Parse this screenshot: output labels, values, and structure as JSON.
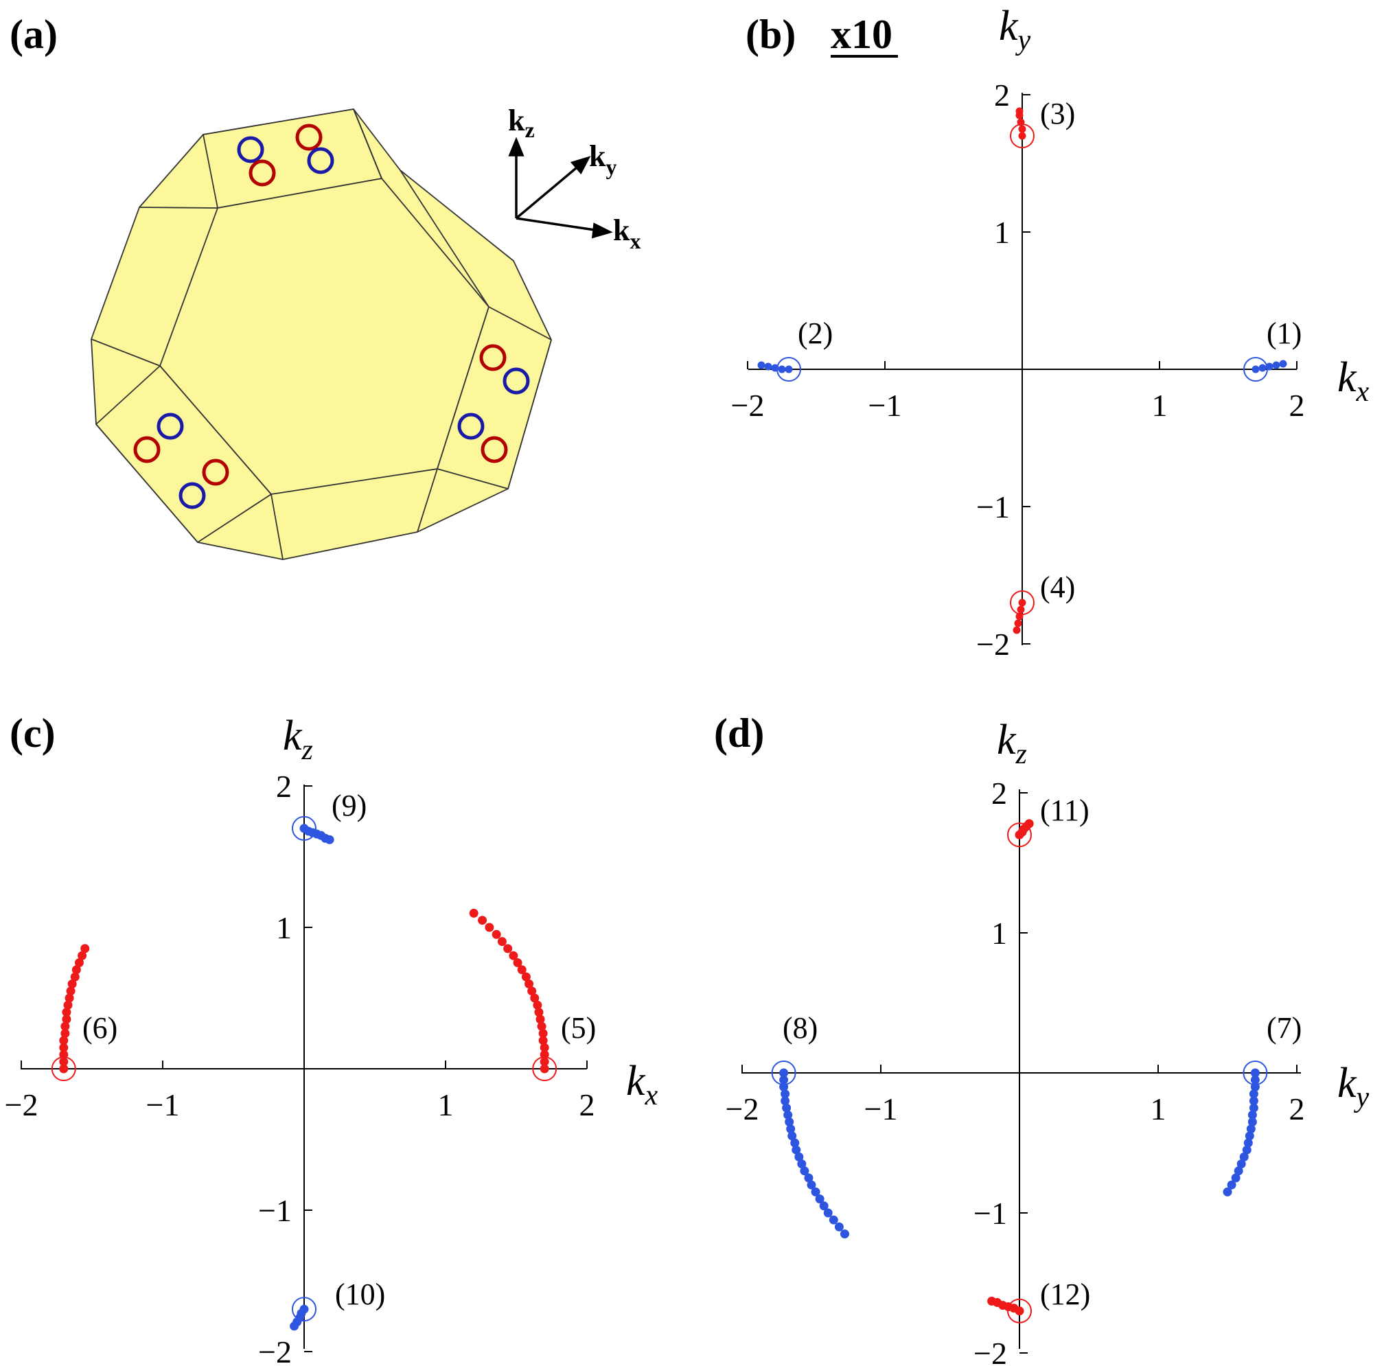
{
  "panel_a": {
    "label": "(a)",
    "axis_labels": {
      "kz": {
        "base": "k",
        "sub": "z"
      },
      "ky": {
        "base": "k",
        "sub": "y"
      },
      "kx": {
        "base": "k",
        "sub": "x"
      }
    },
    "colors": {
      "face": "#fbf79a",
      "edge": "#333333",
      "red": "#b30000",
      "blue": "#1a1aa8"
    }
  },
  "chart_data": [
    {
      "type": "scatter",
      "panel": "(b)",
      "scale_note": "x10",
      "xlabel": {
        "base": "k",
        "sub": "x"
      },
      "ylabel": {
        "base": "k",
        "sub": "y"
      },
      "xlim": [
        -2,
        2
      ],
      "ylim": [
        -2,
        2
      ],
      "xticks": [
        "−2",
        "−1",
        "1",
        "2"
      ],
      "yticks": [
        "2",
        "1",
        "−1",
        "−2"
      ],
      "series": [
        {
          "color": "#2e55e0",
          "points": [
            [
              1.7,
              0.0
            ],
            [
              1.75,
              0.01
            ],
            [
              1.8,
              0.02
            ],
            [
              1.85,
              0.03
            ],
            [
              1.9,
              0.04
            ]
          ]
        },
        {
          "color": "#2e55e0",
          "points": [
            [
              -1.7,
              0.0
            ],
            [
              -1.75,
              0.0
            ],
            [
              -1.8,
              0.01
            ],
            [
              -1.85,
              0.02
            ],
            [
              -1.9,
              0.03
            ]
          ]
        },
        {
          "color": "#ee1a1a",
          "points": [
            [
              0.0,
              1.7
            ],
            [
              0.0,
              1.75
            ],
            [
              -0.01,
              1.8
            ],
            [
              -0.02,
              1.85
            ],
            [
              -0.02,
              1.88
            ]
          ]
        },
        {
          "color": "#ee1a1a",
          "points": [
            [
              0.0,
              -1.7
            ],
            [
              -0.01,
              -1.75
            ],
            [
              -0.02,
              -1.8
            ],
            [
              -0.03,
              -1.85
            ],
            [
              -0.04,
              -1.9
            ]
          ]
        }
      ],
      "weyl_points": [
        {
          "x": 1.7,
          "y": 0.0,
          "color": "#2e55e0",
          "label": "(1)"
        },
        {
          "x": -1.7,
          "y": 0.0,
          "color": "#2e55e0",
          "label": "(2)"
        },
        {
          "x": 0.0,
          "y": 1.7,
          "color": "#ee1a1a",
          "label": "(3)"
        },
        {
          "x": 0.0,
          "y": -1.7,
          "color": "#ee1a1a",
          "label": "(4)"
        }
      ]
    },
    {
      "type": "scatter",
      "panel": "(c)",
      "xlabel": {
        "base": "k",
        "sub": "x"
      },
      "ylabel": {
        "base": "k",
        "sub": "z"
      },
      "xlim": [
        -2,
        2
      ],
      "ylim": [
        -2,
        2
      ],
      "xticks": [
        "−2",
        "−1",
        "1",
        "2"
      ],
      "yticks": [
        "2",
        "1",
        "−1",
        "−2"
      ],
      "series": [
        {
          "color": "#ee1a1a",
          "points": [
            [
              1.7,
              0.0
            ],
            [
              1.7,
              0.05
            ],
            [
              1.7,
              0.1
            ],
            [
              1.7,
              0.15
            ],
            [
              1.69,
              0.2
            ],
            [
              1.69,
              0.25
            ],
            [
              1.68,
              0.3
            ],
            [
              1.67,
              0.35
            ],
            [
              1.66,
              0.4
            ],
            [
              1.65,
              0.45
            ],
            [
              1.63,
              0.5
            ],
            [
              1.61,
              0.55
            ],
            [
              1.59,
              0.6
            ],
            [
              1.57,
              0.65
            ],
            [
              1.54,
              0.7
            ],
            [
              1.51,
              0.75
            ],
            [
              1.48,
              0.8
            ],
            [
              1.44,
              0.85
            ],
            [
              1.4,
              0.9
            ],
            [
              1.36,
              0.95
            ],
            [
              1.31,
              1.0
            ],
            [
              1.26,
              1.05
            ],
            [
              1.2,
              1.1
            ]
          ]
        },
        {
          "color": "#ee1a1a",
          "points": [
            [
              -1.7,
              0.0
            ],
            [
              -1.7,
              0.05
            ],
            [
              -1.7,
              0.1
            ],
            [
              -1.7,
              0.15
            ],
            [
              -1.7,
              0.2
            ],
            [
              -1.69,
              0.25
            ],
            [
              -1.69,
              0.3
            ],
            [
              -1.68,
              0.35
            ],
            [
              -1.68,
              0.4
            ],
            [
              -1.67,
              0.45
            ],
            [
              -1.66,
              0.5
            ],
            [
              -1.65,
              0.55
            ],
            [
              -1.64,
              0.6
            ],
            [
              -1.62,
              0.65
            ],
            [
              -1.61,
              0.7
            ],
            [
              -1.59,
              0.75
            ],
            [
              -1.57,
              0.8
            ],
            [
              -1.55,
              0.85
            ]
          ]
        },
        {
          "color": "#2e55e0",
          "points": [
            [
              0.0,
              1.7
            ],
            [
              0.03,
              1.68
            ],
            [
              0.06,
              1.67
            ],
            [
              0.09,
              1.66
            ],
            [
              0.12,
              1.65
            ],
            [
              0.15,
              1.63
            ],
            [
              0.18,
              1.62
            ]
          ]
        },
        {
          "color": "#2e55e0",
          "points": [
            [
              0.0,
              -1.7
            ],
            [
              -0.02,
              -1.73
            ],
            [
              -0.03,
              -1.76
            ],
            [
              -0.05,
              -1.79
            ],
            [
              -0.07,
              -1.82
            ]
          ]
        }
      ],
      "weyl_points": [
        {
          "x": 1.7,
          "y": 0.0,
          "color": "#ee1a1a",
          "label": "(5)"
        },
        {
          "x": -1.7,
          "y": 0.0,
          "color": "#ee1a1a",
          "label": "(6)"
        },
        {
          "x": 0.0,
          "y": 1.7,
          "color": "#2e55e0",
          "label": "(9)"
        },
        {
          "x": 0.0,
          "y": -1.7,
          "color": "#2e55e0",
          "label": "(10)"
        }
      ]
    },
    {
      "type": "scatter",
      "panel": "(d)",
      "xlabel": {
        "base": "k",
        "sub": "y"
      },
      "ylabel": {
        "base": "k",
        "sub": "z"
      },
      "xlim": [
        -2,
        2
      ],
      "ylim": [
        -2,
        2
      ],
      "xticks": [
        "−2",
        "−1",
        "1",
        "2"
      ],
      "yticks": [
        "2",
        "1",
        "−1",
        "−2"
      ],
      "series": [
        {
          "color": "#2e55e0",
          "points": [
            [
              1.7,
              0.0
            ],
            [
              1.7,
              -0.05
            ],
            [
              1.7,
              -0.1
            ],
            [
              1.69,
              -0.15
            ],
            [
              1.69,
              -0.2
            ],
            [
              1.69,
              -0.25
            ],
            [
              1.68,
              -0.3
            ],
            [
              1.68,
              -0.35
            ],
            [
              1.67,
              -0.4
            ],
            [
              1.66,
              -0.45
            ],
            [
              1.65,
              -0.5
            ],
            [
              1.64,
              -0.55
            ],
            [
              1.62,
              -0.6
            ],
            [
              1.6,
              -0.65
            ],
            [
              1.58,
              -0.7
            ],
            [
              1.56,
              -0.75
            ],
            [
              1.53,
              -0.8
            ],
            [
              1.5,
              -0.85
            ]
          ]
        },
        {
          "color": "#2e55e0",
          "points": [
            [
              -1.7,
              0.0
            ],
            [
              -1.7,
              -0.05
            ],
            [
              -1.7,
              -0.1
            ],
            [
              -1.69,
              -0.15
            ],
            [
              -1.69,
              -0.2
            ],
            [
              -1.68,
              -0.25
            ],
            [
              -1.67,
              -0.3
            ],
            [
              -1.66,
              -0.35
            ],
            [
              -1.65,
              -0.4
            ],
            [
              -1.64,
              -0.45
            ],
            [
              -1.62,
              -0.5
            ],
            [
              -1.61,
              -0.55
            ],
            [
              -1.59,
              -0.6
            ],
            [
              -1.57,
              -0.65
            ],
            [
              -1.55,
              -0.7
            ],
            [
              -1.52,
              -0.75
            ],
            [
              -1.5,
              -0.8
            ],
            [
              -1.47,
              -0.85
            ],
            [
              -1.44,
              -0.9
            ],
            [
              -1.41,
              -0.95
            ],
            [
              -1.38,
              -1.0
            ],
            [
              -1.34,
              -1.05
            ],
            [
              -1.3,
              -1.1
            ],
            [
              -1.26,
              -1.15
            ]
          ]
        },
        {
          "color": "#ee1a1a",
          "points": [
            [
              0.0,
              1.7
            ],
            [
              0.02,
              1.72
            ],
            [
              0.03,
              1.74
            ],
            [
              0.05,
              1.76
            ],
            [
              0.07,
              1.78
            ]
          ]
        },
        {
          "color": "#ee1a1a",
          "points": [
            [
              0.0,
              -1.7
            ],
            [
              -0.04,
              -1.68
            ],
            [
              -0.08,
              -1.67
            ],
            [
              -0.12,
              -1.66
            ],
            [
              -0.16,
              -1.64
            ],
            [
              -0.2,
              -1.63
            ]
          ]
        }
      ],
      "weyl_points": [
        {
          "x": 1.7,
          "y": 0.0,
          "color": "#2e55e0",
          "label": "(7)"
        },
        {
          "x": -1.7,
          "y": 0.0,
          "color": "#2e55e0",
          "label": "(8)"
        },
        {
          "x": 0.0,
          "y": 1.7,
          "color": "#ee1a1a",
          "label": "(11)"
        },
        {
          "x": 0.0,
          "y": -1.7,
          "color": "#ee1a1a",
          "label": "(12)"
        }
      ]
    }
  ]
}
